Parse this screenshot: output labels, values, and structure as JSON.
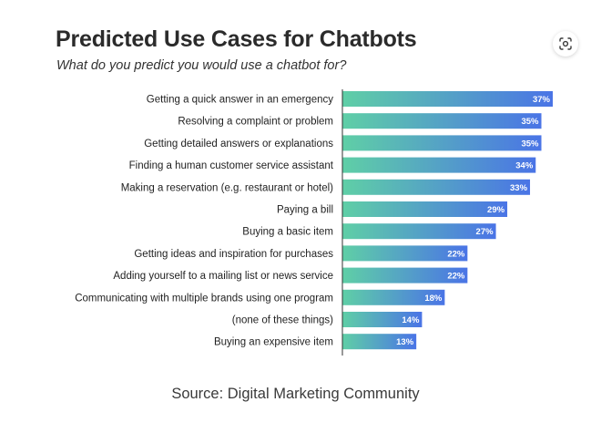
{
  "header": {
    "title": "Predicted Use Cases for Chatbots",
    "subtitle": "What do you predict you would use a chatbot for?"
  },
  "footer": {
    "source": "Source: Digital Marketing Community"
  },
  "toolbar": {
    "lens_icon": "google-lens-icon"
  },
  "colors": {
    "bar_start": "#5fcfa6",
    "bar_end": "#4a74e6",
    "axis": "#333333"
  },
  "chart_data": {
    "type": "bar",
    "orientation": "horizontal",
    "title": "Predicted Use Cases for Chatbots",
    "subtitle": "What do you predict you would use a chatbot for?",
    "categories": [
      "Getting a quick answer in an emergency",
      "Resolving a complaint or problem",
      "Getting detailed answers or explanations",
      "Finding a human customer service assistant",
      "Making a reservation (e.g. restaurant or hotel)",
      "Paying a bill",
      "Buying a basic item",
      "Getting ideas and inspiration for purchases",
      "Adding yourself to a mailing list or news service",
      "Communicating with multiple brands using one program",
      "(none of these things)",
      "Buying an expensive item"
    ],
    "values": [
      37,
      35,
      35,
      34,
      33,
      29,
      27,
      22,
      22,
      18,
      14,
      13
    ],
    "value_labels": [
      "37%",
      "35%",
      "35%",
      "34%",
      "33%",
      "29%",
      "27%",
      "22%",
      "22%",
      "18%",
      "14%",
      "13%"
    ],
    "unit": "%",
    "xlim": [
      0,
      37
    ],
    "grid": false,
    "legend": "none"
  }
}
